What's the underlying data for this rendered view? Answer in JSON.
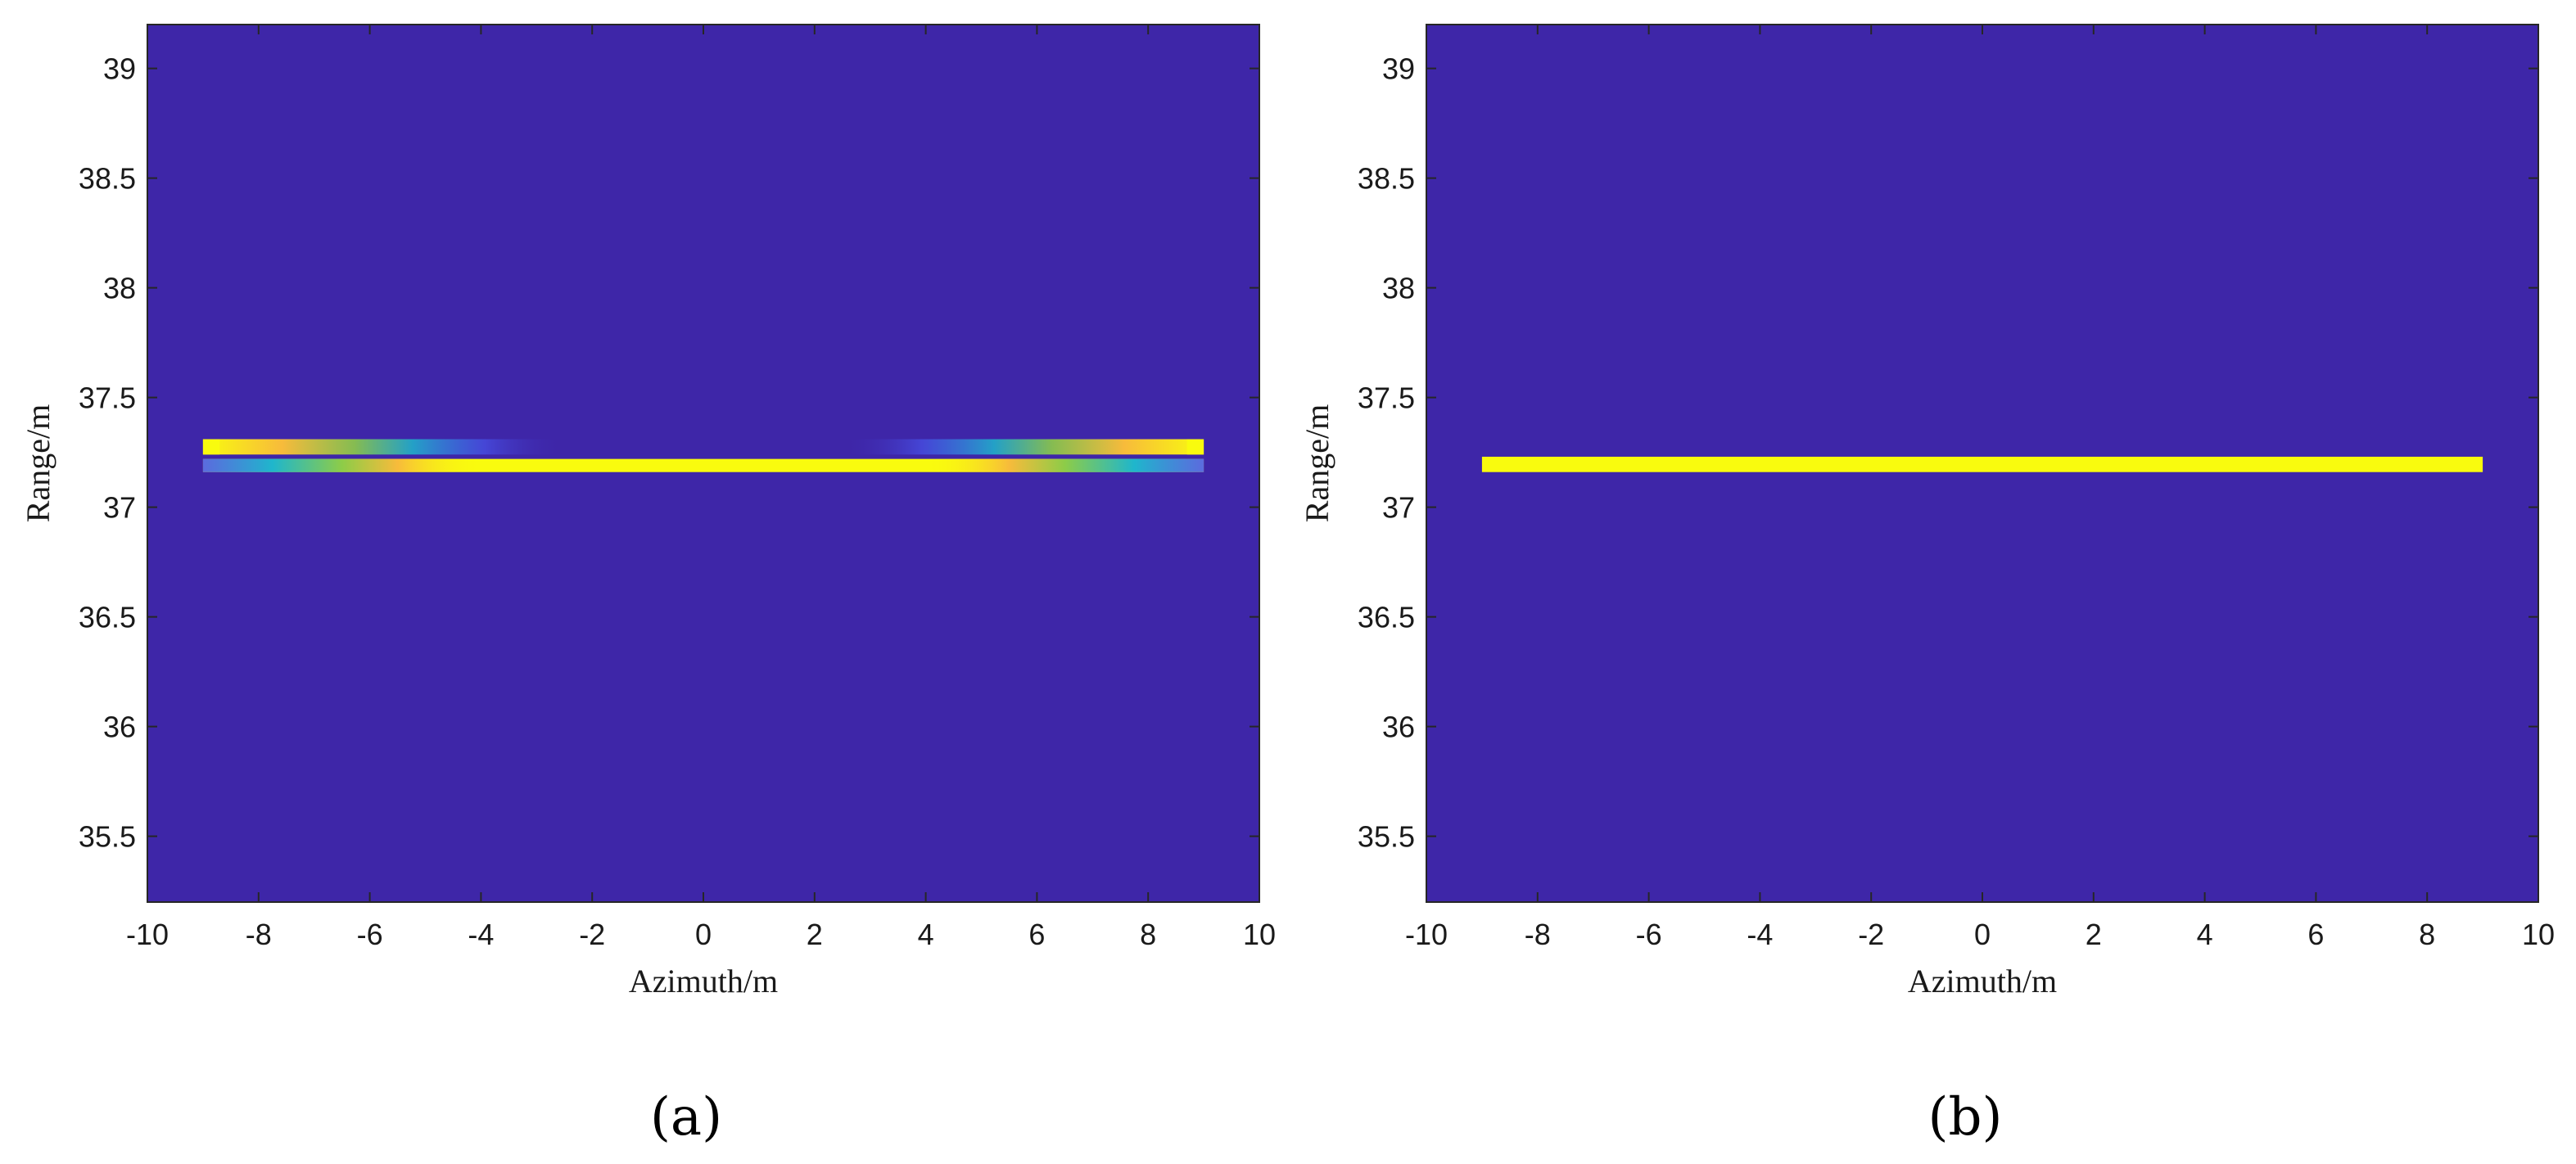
{
  "chart_data": [
    {
      "type": "heatmap",
      "panel_label": "(a)",
      "xlabel": "Azimuth/m",
      "ylabel": "Range/m",
      "xlim": [
        -10,
        10
      ],
      "ylim": [
        35.2,
        39.2
      ],
      "xticks": [
        -10,
        -8,
        -6,
        -4,
        -2,
        0,
        2,
        4,
        6,
        8,
        10
      ],
      "yticks": [
        35.5,
        36,
        36.5,
        37,
        37.5,
        38,
        38.5,
        39
      ],
      "background_color": "#3e26a8",
      "colormap": [
        "#3e26a8",
        "#4a5bf5",
        "#1fb6cc",
        "#8dcc48",
        "#f7bb3b",
        "#f9fb0e"
      ],
      "features": [
        {
          "kind": "full-bar",
          "x": [
            -9,
            9
          ],
          "y": [
            37.16,
            37.22
          ]
        },
        {
          "kind": "fade-bar",
          "x": [
            -9,
            -2.5
          ],
          "y": [
            37.24,
            37.31
          ]
        },
        {
          "kind": "fade-bar",
          "x": [
            2.5,
            9
          ],
          "y": [
            37.24,
            37.31
          ]
        },
        {
          "kind": "bright-cap",
          "x": [
            -9,
            -8.7
          ],
          "y": [
            37.24,
            37.31
          ]
        },
        {
          "kind": "bright-cap",
          "x": [
            8.7,
            9
          ],
          "y": [
            37.24,
            37.31
          ]
        },
        {
          "kind": "gradient-lower",
          "x": [
            -9,
            -4
          ],
          "y": [
            37.16,
            37.22
          ]
        },
        {
          "kind": "gradient-lower",
          "x": [
            4,
            9
          ],
          "y": [
            37.16,
            37.22
          ]
        }
      ]
    },
    {
      "type": "heatmap",
      "panel_label": "(b)",
      "xlabel": "Azimuth/m",
      "ylabel": "Range/m",
      "xlim": [
        -10,
        10
      ],
      "ylim": [
        35.2,
        39.2
      ],
      "xticks": [
        -10,
        -8,
        -6,
        -4,
        -2,
        0,
        2,
        4,
        6,
        8,
        10
      ],
      "yticks": [
        35.5,
        36,
        36.5,
        37,
        37.5,
        38,
        38.5,
        39
      ],
      "background_color": "#3e26a8",
      "colormap": [
        "#3e26a8",
        "#4a5bf5",
        "#1fb6cc",
        "#8dcc48",
        "#f7bb3b",
        "#f9fb0e"
      ],
      "features": [
        {
          "kind": "full-bar",
          "x": [
            -9,
            9
          ],
          "y": [
            37.16,
            37.23
          ]
        }
      ]
    }
  ]
}
